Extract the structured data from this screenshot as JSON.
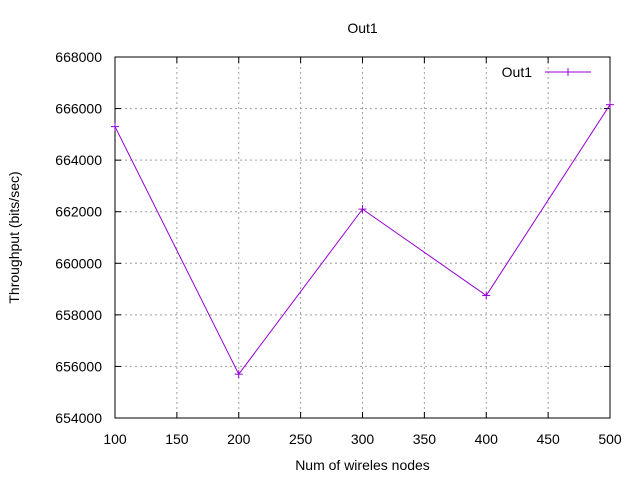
{
  "chart_data": {
    "type": "line",
    "title": "Out1",
    "xlabel": "Num of wireles nodes",
    "ylabel": "Throughput (bits/sec)",
    "xlim": [
      100,
      500
    ],
    "ylim": [
      654000,
      668000
    ],
    "xticks": [
      100,
      150,
      200,
      250,
      300,
      350,
      400,
      450,
      500
    ],
    "yticks": [
      654000,
      656000,
      658000,
      660000,
      662000,
      664000,
      666000,
      668000
    ],
    "grid": true,
    "legend_position": "top-right",
    "series": [
      {
        "name": "Out1",
        "color": "#9400d3",
        "marker": "plus",
        "x": [
          100,
          200,
          300,
          400,
          500
        ],
        "y": [
          665300,
          655700,
          662100,
          658750,
          666150
        ]
      }
    ]
  }
}
